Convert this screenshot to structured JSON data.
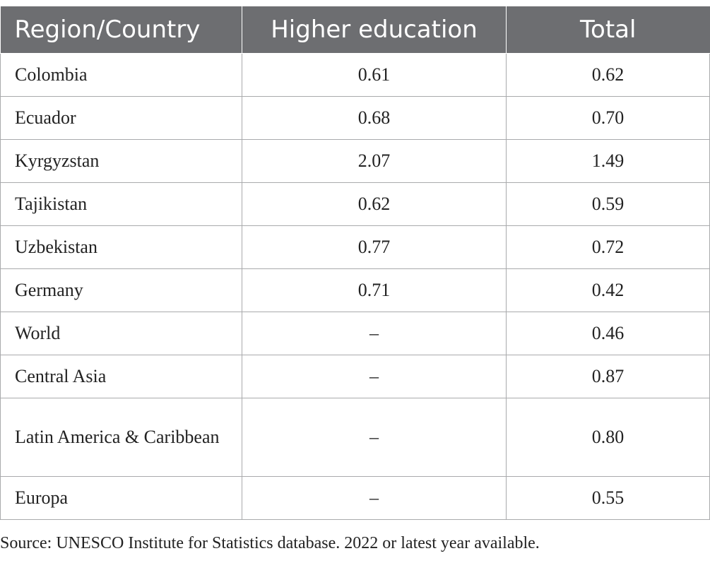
{
  "table": {
    "headers": [
      "Region/Country",
      "Higher education",
      "Total"
    ],
    "rows": [
      [
        "Colombia",
        "0.61",
        "0.62"
      ],
      [
        "Ecuador",
        "0.68",
        "0.70"
      ],
      [
        "Kyrgyzstan",
        "2.07",
        "1.49"
      ],
      [
        "Tajikistan",
        "0.62",
        "0.59"
      ],
      [
        "Uzbekistan",
        "0.77",
        "0.72"
      ],
      [
        "Germany",
        "0.71",
        "0.42"
      ],
      [
        "World",
        "–",
        "0.46"
      ],
      [
        "Central Asia",
        "–",
        "0.87"
      ],
      [
        "Latin America & Caribbean",
        "–",
        "0.80"
      ],
      [
        "Europa",
        "–",
        "0.55"
      ]
    ]
  },
  "source_note": "Source: UNESCO Institute for Statistics database. 2022 or latest year available.",
  "colors": {
    "header_bg": "#6d6e71",
    "header_text": "#ffffff",
    "grid_line": "#a9aaac"
  }
}
